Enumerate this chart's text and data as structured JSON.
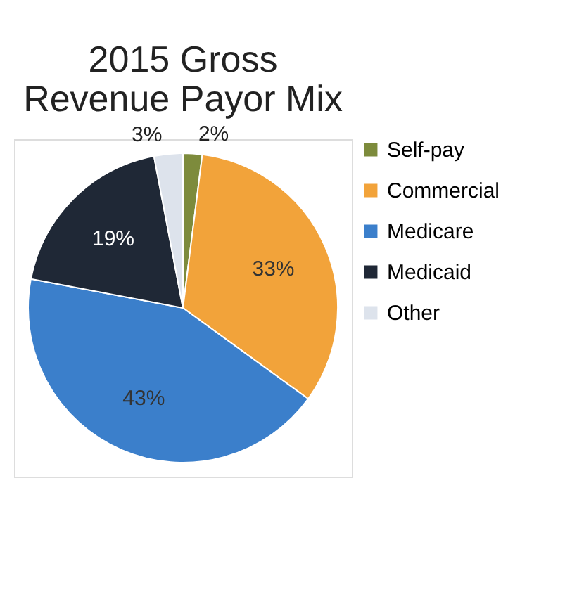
{
  "chart_data": {
    "type": "pie",
    "title": "2015 Gross Revenue Payor Mix",
    "categories": [
      "Self-pay",
      "Commercial",
      "Medicare",
      "Medicaid",
      "Other"
    ],
    "values": [
      2,
      33,
      43,
      19,
      3
    ],
    "colors": [
      "#7d8b3c",
      "#f2a33a",
      "#3b7fcb",
      "#1f2836",
      "#dde3ec"
    ],
    "value_labels": [
      "2%",
      "33%",
      "43%",
      "19%",
      "3%"
    ],
    "legend": "right"
  }
}
